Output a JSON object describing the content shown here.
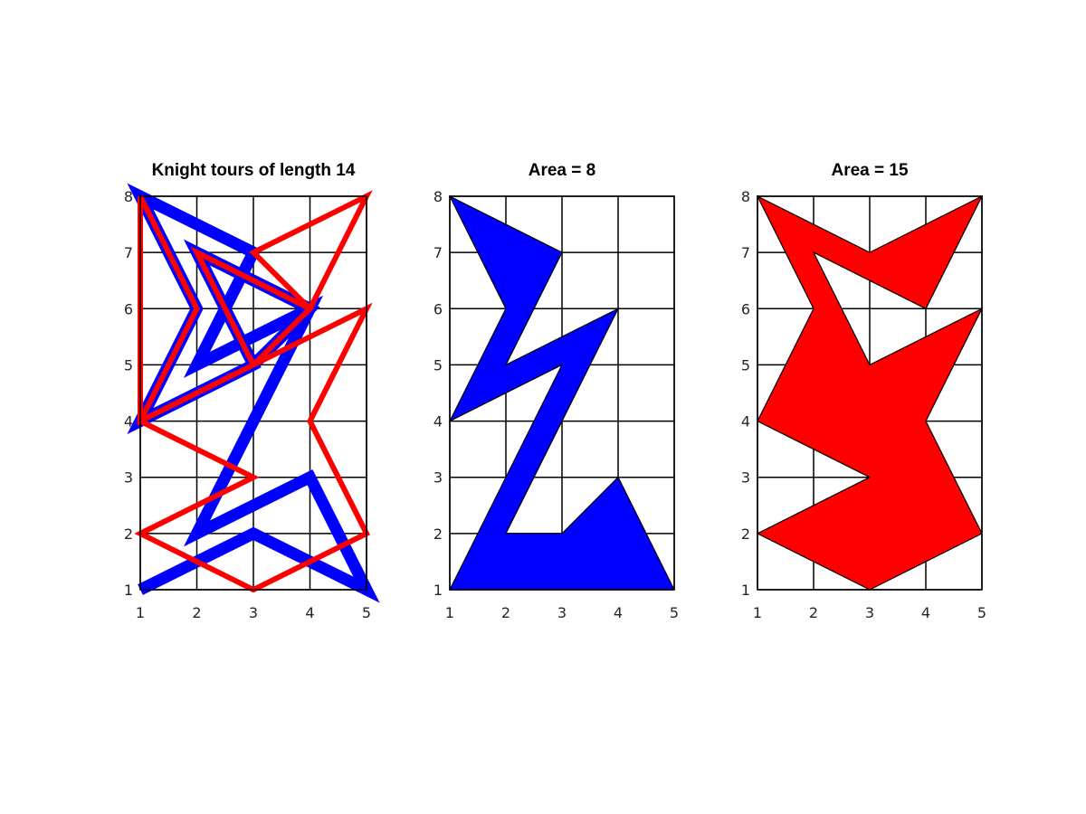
{
  "chart_data": [
    {
      "type": "line",
      "title": "Knight tours of length 14",
      "x_ticks": [
        1,
        2,
        3,
        4,
        5
      ],
      "y_ticks": [
        1,
        2,
        3,
        4,
        5,
        6,
        7,
        8
      ],
      "xlim": [
        1,
        5
      ],
      "ylim": [
        1,
        8
      ],
      "grid": true,
      "series": [
        {
          "color": "#0000ff",
          "points": [
            [
              1,
              1
            ],
            [
              3,
              2
            ],
            [
              5,
              1
            ],
            [
              4,
              3
            ],
            [
              2,
              2
            ],
            [
              4,
              6
            ],
            [
              2,
              5
            ],
            [
              3,
              7
            ],
            [
              1,
              8
            ],
            [
              2,
              6
            ],
            [
              1,
              4
            ],
            [
              3,
              5
            ],
            [
              2,
              7
            ],
            [
              4,
              6
            ],
            [
              3,
              5
            ],
            [
              1,
              4
            ]
          ]
        },
        {
          "color": "#ff0000",
          "points": [
            [
              1,
              8
            ],
            [
              2,
              6
            ],
            [
              1,
              4
            ],
            [
              3,
              3
            ],
            [
              1,
              2
            ],
            [
              3,
              1
            ],
            [
              5,
              2
            ],
            [
              4,
              4
            ],
            [
              5,
              6
            ],
            [
              3,
              5
            ],
            [
              4,
              6
            ],
            [
              3,
              7
            ],
            [
              5,
              8
            ],
            [
              4,
              6
            ],
            [
              2,
              7
            ],
            [
              3,
              5
            ],
            [
              1,
              4
            ],
            [
              1,
              8
            ]
          ]
        }
      ]
    },
    {
      "type": "area",
      "title": "Area = 8",
      "x_ticks": [
        1,
        2,
        3,
        4,
        5
      ],
      "y_ticks": [
        1,
        2,
        3,
        4,
        5,
        6,
        7,
        8
      ],
      "xlim": [
        1,
        5
      ],
      "ylim": [
        1,
        8
      ],
      "grid": true,
      "fill_color": "#0000ff",
      "polygon": [
        [
          1,
          8
        ],
        [
          3,
          7
        ],
        [
          2,
          5
        ],
        [
          4,
          6
        ],
        [
          2,
          2
        ],
        [
          3,
          2
        ],
        [
          4,
          3
        ],
        [
          5,
          1
        ],
        [
          1,
          1
        ],
        [
          3,
          5
        ],
        [
          1,
          4
        ],
        [
          2,
          6
        ]
      ]
    },
    {
      "type": "area",
      "title": "Area = 15",
      "x_ticks": [
        1,
        2,
        3,
        4,
        5
      ],
      "y_ticks": [
        1,
        2,
        3,
        4,
        5,
        6,
        7,
        8
      ],
      "xlim": [
        1,
        5
      ],
      "ylim": [
        1,
        8
      ],
      "grid": true,
      "fill_color": "#ff0000",
      "polygon": [
        [
          1,
          8
        ],
        [
          3,
          7
        ],
        [
          5,
          8
        ],
        [
          4,
          6
        ],
        [
          2,
          7
        ],
        [
          3,
          5
        ],
        [
          5,
          6
        ],
        [
          4,
          4
        ],
        [
          5,
          2
        ],
        [
          3,
          1
        ],
        [
          1,
          2
        ],
        [
          3,
          3
        ],
        [
          1,
          4
        ],
        [
          2,
          6
        ]
      ]
    }
  ]
}
